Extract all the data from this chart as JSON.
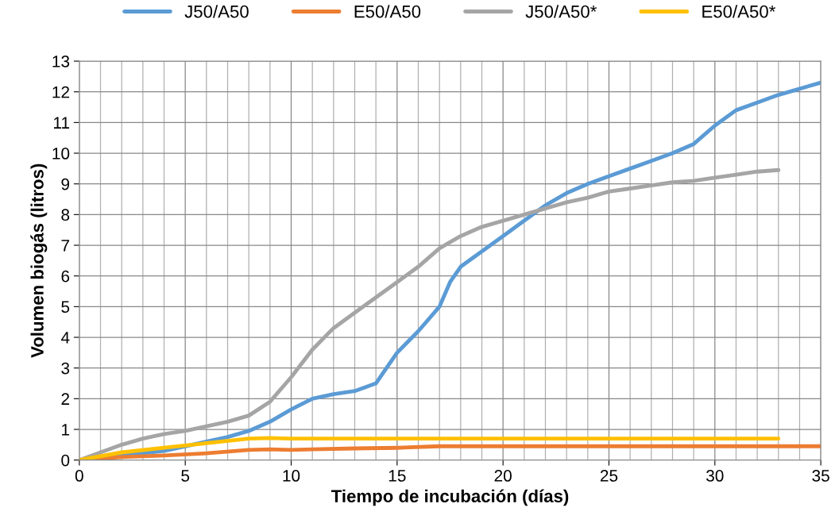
{
  "chart_data": {
    "type": "line",
    "xlabel": "Tiempo de incubación (días)",
    "ylabel": "Volumen biogás (litros)",
    "xlim": [
      0,
      35
    ],
    "xticks": [
      0,
      5,
      10,
      15,
      20,
      25,
      30,
      35
    ],
    "ylim": [
      0,
      13
    ],
    "yticks": [
      0,
      1,
      2,
      3,
      4,
      5,
      6,
      7,
      8,
      9,
      10,
      11,
      12,
      13
    ],
    "grid": true,
    "legend": "top",
    "marker": "none",
    "line_style": "solid",
    "series": [
      {
        "name": "J50/A50",
        "color": "#5b9bd5",
        "x": [
          0,
          2,
          4,
          5,
          6,
          7,
          8,
          9,
          10,
          11,
          12,
          13,
          14,
          14.5,
          15,
          16,
          17,
          17.5,
          18,
          19,
          20,
          21,
          22,
          23,
          24,
          25,
          26,
          27,
          28,
          29,
          30,
          31,
          32,
          33,
          34,
          35
        ],
        "values": [
          0,
          0.15,
          0.3,
          0.45,
          0.6,
          0.75,
          0.95,
          1.25,
          1.65,
          2.0,
          2.15,
          2.25,
          2.5,
          3.0,
          3.5,
          4.2,
          5.0,
          5.8,
          6.3,
          6.8,
          7.3,
          7.8,
          8.3,
          8.7,
          9.0,
          9.25,
          9.5,
          9.75,
          10.0,
          10.3,
          10.9,
          11.4,
          11.65,
          11.9,
          12.1,
          12.3
        ]
      },
      {
        "name": "E50/A50",
        "color": "#ed7d31",
        "x": [
          0,
          2,
          4,
          6,
          8,
          9,
          10,
          11,
          13,
          15,
          17,
          20,
          25,
          30,
          35
        ],
        "values": [
          0,
          0.1,
          0.15,
          0.22,
          0.33,
          0.35,
          0.33,
          0.35,
          0.38,
          0.4,
          0.45,
          0.45,
          0.45,
          0.45,
          0.45
        ]
      },
      {
        "name": "J50/A50*",
        "color": "#a5a5a5",
        "x": [
          0,
          1,
          2,
          3,
          4,
          5,
          6,
          7,
          8,
          9,
          10,
          11,
          12,
          13,
          14,
          15,
          16,
          17,
          18,
          19,
          20,
          21,
          22,
          23,
          24,
          25,
          26,
          27,
          28,
          29,
          30,
          31,
          32,
          33
        ],
        "values": [
          0,
          0.25,
          0.5,
          0.7,
          0.85,
          0.95,
          1.1,
          1.25,
          1.45,
          1.9,
          2.7,
          3.6,
          4.3,
          4.8,
          5.3,
          5.8,
          6.3,
          6.9,
          7.3,
          7.6,
          7.8,
          8.0,
          8.2,
          8.4,
          8.55,
          8.75,
          8.85,
          8.95,
          9.05,
          9.1,
          9.2,
          9.3,
          9.4,
          9.45
        ]
      },
      {
        "name": "E50/A50*",
        "color": "#ffc000",
        "x": [
          0,
          2,
          4,
          6,
          8,
          9,
          10,
          15,
          20,
          25,
          33
        ],
        "values": [
          0,
          0.25,
          0.4,
          0.55,
          0.7,
          0.72,
          0.7,
          0.7,
          0.7,
          0.7,
          0.7
        ]
      }
    ]
  }
}
